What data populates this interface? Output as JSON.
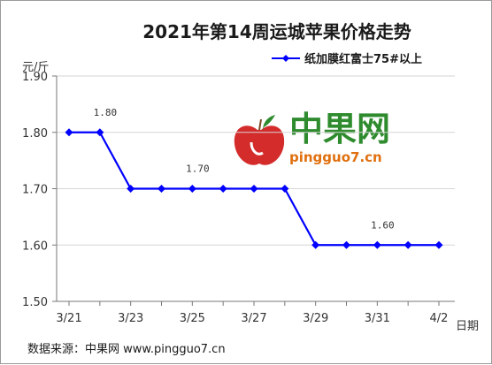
{
  "chart_data": {
    "type": "line",
    "title": "2021年第14周运城苹果价格走势",
    "ylabel": "元/斤",
    "xlabel": "日期",
    "ylim": [
      1.5,
      1.9
    ],
    "yticks": [
      "1.90",
      "1.80",
      "1.70",
      "1.60",
      "1.50"
    ],
    "ytick_values": [
      1.9,
      1.8,
      1.7,
      1.6,
      1.5
    ],
    "x": [
      "3/21",
      "3/22",
      "3/23",
      "3/24",
      "3/25",
      "3/26",
      "3/27",
      "3/28",
      "3/29",
      "3/30",
      "3/31",
      "4/1",
      "4/2"
    ],
    "xtick_labels": [
      "3/21",
      "3/23",
      "3/25",
      "3/27",
      "3/29",
      "3/31",
      "4/2"
    ],
    "series": [
      {
        "name": "纸加膜红富士75#以上",
        "values": [
          1.8,
          1.8,
          1.7,
          1.7,
          1.7,
          1.7,
          1.7,
          1.7,
          1.6,
          1.6,
          1.6,
          1.6,
          1.6
        ],
        "color": "#0000ff"
      }
    ],
    "annotations": [
      {
        "x": "3/22",
        "text": "1.80"
      },
      {
        "x": "3/25",
        "text": "1.70"
      },
      {
        "x": "3/31",
        "text": "1.60"
      }
    ],
    "grid": "horizontal",
    "legend": "top-right"
  },
  "watermark": {
    "name": "中果网",
    "url": "pingguo7.cn"
  },
  "source": "数据来源：中果网 www.pingguo7.cn"
}
